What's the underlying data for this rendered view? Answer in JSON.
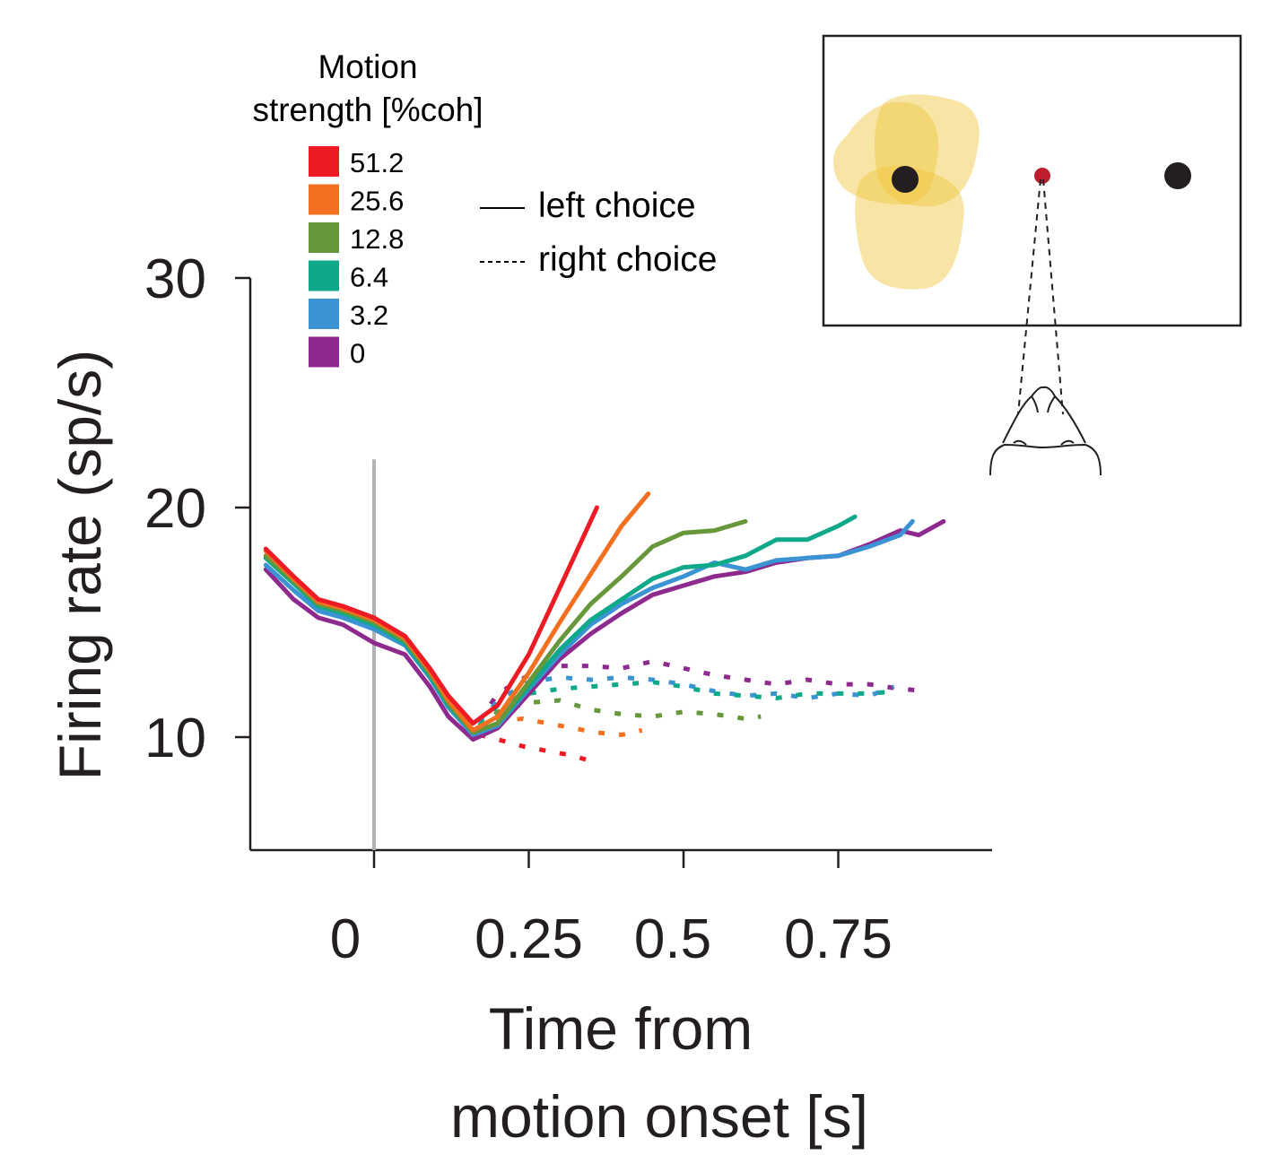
{
  "chart_data": {
    "type": "line",
    "title": "",
    "xlabel_lines": [
      "Time from",
      "motion onset [s]"
    ],
    "ylabel": "Firing rate (sp/s)",
    "xlim": [
      -0.2,
      1.0
    ],
    "ylim": [
      5,
      30
    ],
    "xticks": [
      0,
      0.25,
      0.5,
      0.75
    ],
    "xtick_labels": [
      "0",
      "0.25",
      "0.5",
      "0.75"
    ],
    "yticks": [
      10,
      20,
      30
    ],
    "ytick_labels": [
      "10",
      "20",
      "30"
    ],
    "grid": false,
    "event_marker": {
      "x": 0,
      "label": "motion onset",
      "ymax": 22.1,
      "color": "#b3b3b3"
    },
    "legend": {
      "title_lines": [
        "Motion",
        "strength [%coh]"
      ],
      "placement": "top-left",
      "entries": [
        {
          "label": "51.2",
          "color": "#ed1c24"
        },
        {
          "label": "25.6",
          "color": "#f37021"
        },
        {
          "label": "12.8",
          "color": "#67973b"
        },
        {
          "label": "6.4",
          "color": "#0fa98a"
        },
        {
          "label": "3.2",
          "color": "#3b93d4"
        },
        {
          "label": "0",
          "color": "#8e2a8e"
        }
      ]
    },
    "style_legend": [
      {
        "label": "left choice",
        "style": "solid"
      },
      {
        "label": "right choice",
        "style": "dotted"
      }
    ],
    "series": [
      {
        "name": "51.2 left",
        "coh": "51.2",
        "choice": "left",
        "color": "#ed1c24",
        "x": [
          -0.175,
          -0.13,
          -0.09,
          -0.05,
          0,
          0.05,
          0.09,
          0.12,
          0.16,
          0.2,
          0.25,
          0.3,
          0.36
        ],
        "y": [
          18.2,
          17.0,
          16.0,
          15.7,
          15.2,
          14.4,
          13.0,
          11.8,
          10.6,
          11.4,
          13.6,
          16.5,
          20.0
        ]
      },
      {
        "name": "25.6 left",
        "coh": "25.6",
        "choice": "left",
        "color": "#f37021",
        "x": [
          -0.175,
          -0.13,
          -0.09,
          -0.05,
          0,
          0.05,
          0.09,
          0.12,
          0.16,
          0.2,
          0.25,
          0.3,
          0.35,
          0.4,
          0.443
        ],
        "y": [
          18.1,
          16.9,
          15.9,
          15.6,
          15.1,
          14.3,
          12.9,
          11.6,
          10.3,
          10.9,
          12.8,
          15.0,
          17.1,
          19.2,
          20.6
        ]
      },
      {
        "name": "12.8 left",
        "coh": "12.8",
        "choice": "left",
        "color": "#67973b",
        "x": [
          -0.175,
          -0.13,
          -0.09,
          -0.05,
          0,
          0.05,
          0.09,
          0.12,
          0.16,
          0.2,
          0.25,
          0.3,
          0.35,
          0.4,
          0.45,
          0.5,
          0.55,
          0.6
        ],
        "y": [
          17.9,
          16.8,
          15.8,
          15.5,
          15.0,
          14.2,
          12.8,
          11.5,
          10.2,
          10.6,
          12.4,
          14.2,
          15.8,
          17.0,
          18.3,
          18.9,
          19.0,
          19.4
        ]
      },
      {
        "name": "6.4 left",
        "coh": "6.4",
        "choice": "left",
        "color": "#0fa98a",
        "x": [
          -0.175,
          -0.13,
          -0.09,
          -0.05,
          0,
          0.05,
          0.09,
          0.12,
          0.16,
          0.2,
          0.25,
          0.3,
          0.35,
          0.4,
          0.45,
          0.5,
          0.55,
          0.6,
          0.65,
          0.7,
          0.75,
          0.777
        ],
        "y": [
          17.8,
          16.7,
          15.7,
          15.4,
          14.9,
          14.1,
          12.7,
          11.4,
          10.2,
          10.6,
          12.2,
          13.8,
          15.1,
          16.0,
          16.9,
          17.4,
          17.5,
          17.9,
          18.6,
          18.6,
          19.2,
          19.6
        ]
      },
      {
        "name": "3.2 left",
        "coh": "3.2",
        "choice": "left",
        "color": "#3b93d4",
        "x": [
          -0.175,
          -0.13,
          -0.09,
          -0.05,
          0,
          0.05,
          0.09,
          0.12,
          0.16,
          0.2,
          0.25,
          0.3,
          0.35,
          0.4,
          0.45,
          0.5,
          0.55,
          0.6,
          0.65,
          0.7,
          0.75,
          0.8,
          0.85,
          0.87
        ],
        "y": [
          17.5,
          16.4,
          15.5,
          15.2,
          14.7,
          14.0,
          12.6,
          11.3,
          10.1,
          10.5,
          12.1,
          13.6,
          14.9,
          15.8,
          16.5,
          17.0,
          17.6,
          17.3,
          17.7,
          17.8,
          17.9,
          18.3,
          18.8,
          19.4
        ]
      },
      {
        "name": "0 left",
        "coh": "0",
        "choice": "left",
        "color": "#8e2a8e",
        "x": [
          -0.175,
          -0.13,
          -0.09,
          -0.05,
          0,
          0.05,
          0.09,
          0.12,
          0.16,
          0.2,
          0.25,
          0.3,
          0.35,
          0.4,
          0.45,
          0.5,
          0.55,
          0.6,
          0.65,
          0.7,
          0.75,
          0.8,
          0.85,
          0.88,
          0.92
        ],
        "y": [
          17.3,
          16.0,
          15.2,
          14.9,
          14.1,
          13.6,
          12.2,
          10.9,
          9.9,
          10.4,
          11.9,
          13.4,
          14.5,
          15.4,
          16.2,
          16.6,
          17.0,
          17.2,
          17.6,
          17.8,
          17.9,
          18.4,
          19.0,
          18.8,
          19.4
        ]
      },
      {
        "name": "51.2 right",
        "coh": "51.2",
        "choice": "right",
        "color": "#ed1c24",
        "x": [
          0.17,
          0.2,
          0.24,
          0.28,
          0.32,
          0.345
        ],
        "y": [
          10.1,
          9.9,
          9.6,
          9.4,
          9.2,
          9.0
        ]
      },
      {
        "name": "25.6 right",
        "coh": "25.6",
        "choice": "right",
        "color": "#f37021",
        "x": [
          0.17,
          0.2,
          0.24,
          0.28,
          0.32,
          0.36,
          0.4,
          0.433
        ],
        "y": [
          10.2,
          10.7,
          10.8,
          10.6,
          10.4,
          10.2,
          10.1,
          10.3
        ]
      },
      {
        "name": "12.8 right",
        "coh": "12.8",
        "choice": "right",
        "color": "#67973b",
        "x": [
          0.17,
          0.2,
          0.25,
          0.3,
          0.35,
          0.4,
          0.45,
          0.5,
          0.55,
          0.6,
          0.625
        ],
        "y": [
          10.4,
          11.1,
          11.5,
          11.6,
          11.2,
          11.0,
          10.9,
          11.1,
          11.0,
          10.8,
          10.9
        ]
      },
      {
        "name": "6.4 right",
        "coh": "6.4",
        "choice": "right",
        "color": "#0fa98a",
        "x": [
          0.17,
          0.2,
          0.25,
          0.3,
          0.35,
          0.4,
          0.45,
          0.5,
          0.55,
          0.6,
          0.65,
          0.7,
          0.75,
          0.8,
          0.845
        ],
        "y": [
          10.5,
          11.4,
          11.9,
          12.1,
          12.2,
          12.3,
          12.4,
          12.2,
          11.9,
          11.8,
          11.7,
          11.9,
          11.9,
          11.9,
          12.0
        ]
      },
      {
        "name": "3.2 right",
        "coh": "3.2",
        "choice": "right",
        "color": "#3b93d4",
        "x": [
          0.17,
          0.2,
          0.25,
          0.3,
          0.35,
          0.4,
          0.45,
          0.5,
          0.55,
          0.6,
          0.65,
          0.7,
          0.75,
          0.8,
          0.84
        ],
        "y": [
          10.6,
          11.6,
          12.4,
          12.6,
          12.5,
          12.6,
          12.5,
          12.3,
          12.0,
          11.8,
          11.9,
          11.7,
          11.9,
          11.8,
          12.2
        ]
      },
      {
        "name": "0 right",
        "coh": "0",
        "choice": "right",
        "color": "#8e2a8e",
        "x": [
          0.17,
          0.2,
          0.25,
          0.3,
          0.35,
          0.4,
          0.45,
          0.5,
          0.55,
          0.6,
          0.65,
          0.7,
          0.75,
          0.8,
          0.85,
          0.896
        ],
        "y": [
          10.7,
          11.9,
          12.7,
          13.1,
          13.1,
          13.0,
          13.3,
          13.0,
          12.7,
          12.5,
          12.3,
          12.5,
          12.3,
          12.3,
          12.1,
          12.0
        ]
      }
    ]
  },
  "inset": {
    "description": "Task schematic: screen with response field, fixation point and two targets, viewed by subject",
    "fixation_color": "#be1e2d",
    "target_color": "#231f20",
    "response_field_color": "#f0c53a"
  }
}
